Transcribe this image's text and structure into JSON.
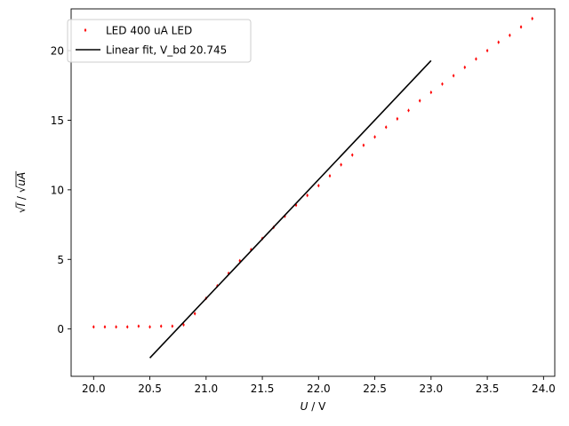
{
  "chart_data": {
    "type": "scatter",
    "xlabel_symbol": "U",
    "xlabel_unit": " / V",
    "ylabel_symbol": "I",
    "ylabel_unit_prefix": " / ",
    "ylabel_unit": "uA",
    "xlim": [
      19.8,
      24.1
    ],
    "ylim": [
      -3.4,
      23.0
    ],
    "xticks": [
      20.0,
      20.5,
      21.0,
      21.5,
      22.0,
      22.5,
      23.0,
      23.5,
      24.0
    ],
    "xtick_labels": [
      "20.0",
      "20.5",
      "21.0",
      "21.5",
      "22.0",
      "22.5",
      "23.0",
      "23.5",
      "24.0"
    ],
    "yticks": [
      0,
      5,
      10,
      15,
      20
    ],
    "ytick_labels": [
      "0",
      "5",
      "10",
      "15",
      "20"
    ],
    "grid": false,
    "legend_position": "top-left",
    "series": [
      {
        "name": "LED 400 uA LED",
        "kind": "scatter",
        "color": "#ff0000",
        "x": [
          20.0,
          20.1,
          20.2,
          20.3,
          20.4,
          20.5,
          20.6,
          20.7,
          20.8,
          20.9,
          21.0,
          21.1,
          21.2,
          21.3,
          21.4,
          21.5,
          21.6,
          21.7,
          21.8,
          21.9,
          22.0,
          22.1,
          22.2,
          22.3,
          22.4,
          22.5,
          22.6,
          22.7,
          22.8,
          22.9,
          23.0,
          23.1,
          23.2,
          23.3,
          23.4,
          23.5,
          23.6,
          23.7,
          23.8,
          23.9
        ],
        "y": [
          0.15,
          0.15,
          0.15,
          0.15,
          0.2,
          0.15,
          0.2,
          0.2,
          0.3,
          1.1,
          2.2,
          3.1,
          4.0,
          4.9,
          5.7,
          6.5,
          7.3,
          8.1,
          8.9,
          9.6,
          10.3,
          11.0,
          11.8,
          12.5,
          13.2,
          13.8,
          14.5,
          15.1,
          15.7,
          16.4,
          17.0,
          17.6,
          18.2,
          18.8,
          19.4,
          20.0,
          20.6,
          21.1,
          21.7,
          22.3
        ]
      },
      {
        "name": "Linear fit, V_bd 20.745",
        "kind": "line",
        "color": "#000000",
        "x": [
          20.5,
          23.0
        ],
        "y": [
          -2.08,
          19.28
        ]
      }
    ]
  }
}
